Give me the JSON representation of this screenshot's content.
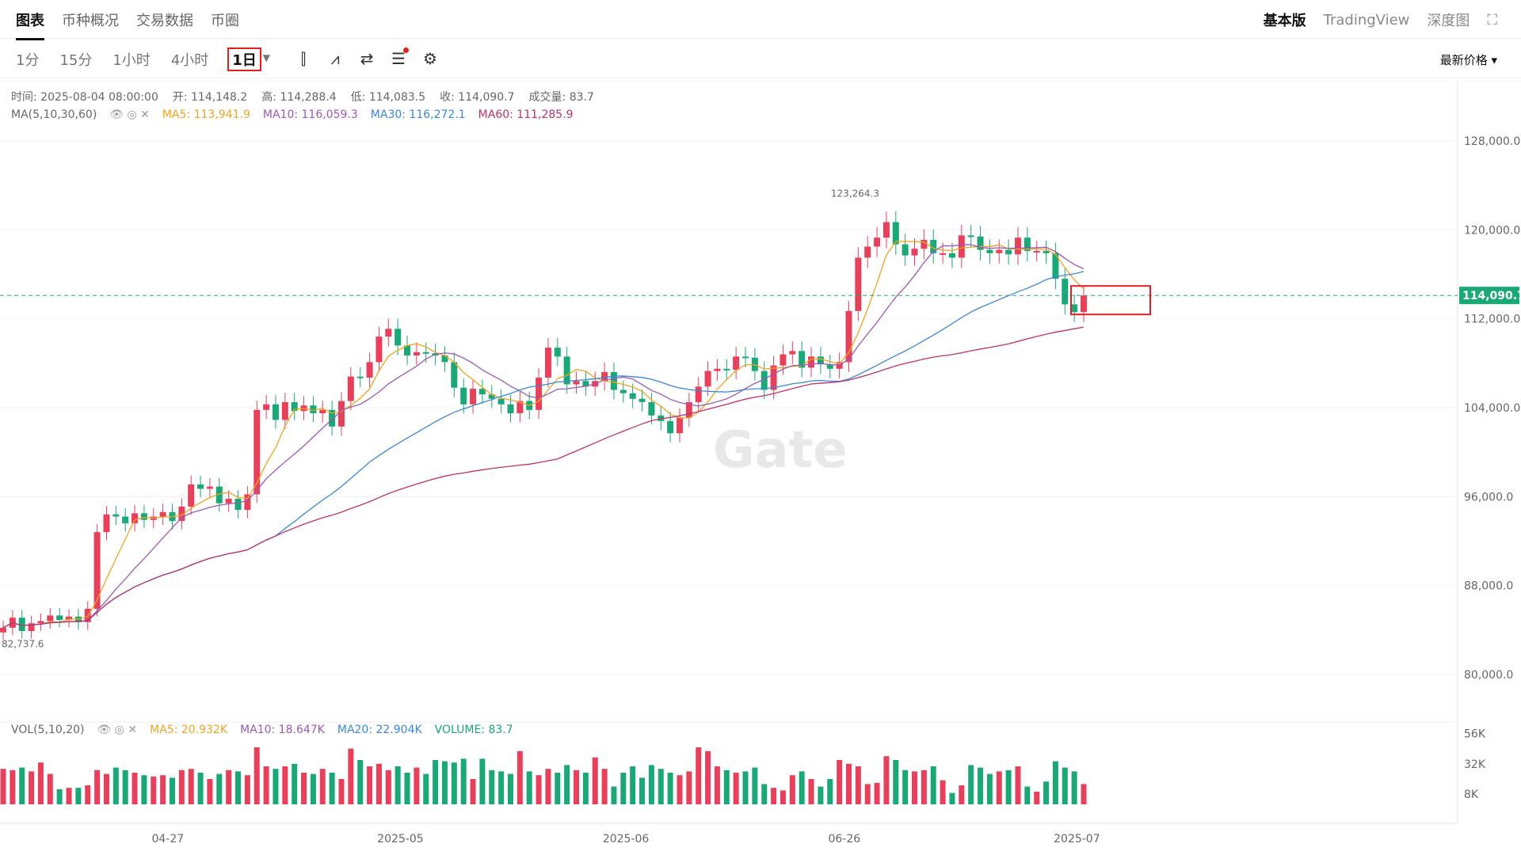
{
  "tabs": [
    "图表",
    "币种概况",
    "交易数据",
    "币圈"
  ],
  "top_right": {
    "basic": "基本版",
    "tradingview": "TradingView",
    "depth": "深度图"
  },
  "intervals": [
    "1分",
    "15分",
    "1小时",
    "4小时",
    "1日"
  ],
  "price_selector": "最新价格 ▾",
  "ohlc": {
    "time": "时间: 2025-08-04 08:00:00",
    "open": "开: 114,148.2",
    "high": "高: 114,288.4",
    "low": "低: 114,083.5",
    "close": "收: 114,090.7",
    "volume": "成交量: 83.7"
  },
  "ma_info": {
    "label": "MA(5,10,30,60)",
    "ma5": "MA5: 113,941.9",
    "ma10": "MA10: 116,059.3",
    "ma30": "MA30: 116,272.1",
    "ma60": "MA60: 111,285.9"
  },
  "vol_info": {
    "label": "VOL(5,10,20)",
    "ma5": "MA5: 20.932K",
    "ma10": "MA10: 18.647K",
    "ma20": "MA20: 22.904K",
    "volume": "VOLUME: 83.7"
  },
  "watermark": "Gate",
  "colors": {
    "up": "#e8405a",
    "down": "#1aa876",
    "ma5": "#f0a320",
    "ma10": "#9b59b6",
    "ma30": "#3a87d8",
    "ma60": "#c0306a",
    "price_line": "#1aa876"
  },
  "chart_data": {
    "type": "candlestick",
    "y_ticks": [
      "128,000.0",
      "120,000.0",
      "112,000.0",
      "104,000.0",
      "96,000.0",
      "88,000.0",
      "80,000.0"
    ],
    "x_ticks": [
      "04-27",
      "2025-05",
      "2025-06",
      "06-26",
      "2025-07"
    ],
    "vol_ticks": [
      "56K",
      "32K",
      "8K"
    ],
    "last_price": "114,090.7",
    "high_label": "123,264.3",
    "low_label": "82,737.6",
    "closes": [
      84200,
      85100,
      83900,
      84600,
      84800,
      85300,
      84900,
      85200,
      84700,
      85900,
      92800,
      94400,
      94200,
      93600,
      94500,
      93900,
      94200,
      94600,
      93800,
      95100,
      97100,
      96700,
      96900,
      95400,
      95800,
      94800,
      96200,
      103800,
      104300,
      102900,
      104500,
      103700,
      104200,
      103500,
      103800,
      102300,
      104600,
      106800,
      106700,
      108100,
      110400,
      111100,
      109600,
      108700,
      109000,
      108900,
      108700,
      108100,
      105800,
      104300,
      105700,
      105200,
      104800,
      104300,
      103500,
      104600,
      103800,
      106700,
      109400,
      108600,
      106100,
      106400,
      105900,
      106400,
      107200,
      105600,
      105300,
      104800,
      104500,
      103300,
      102800,
      101700,
      103100,
      104500,
      105900,
      107300,
      107500,
      107400,
      108600,
      108500,
      107300,
      105600,
      107800,
      108800,
      109100,
      107600,
      108600,
      107900,
      107500,
      108100,
      112700,
      117500,
      118500,
      119300,
      120700,
      118700,
      117700,
      118300,
      119100,
      117900,
      117900,
      117500,
      119500,
      119400,
      118200,
      117900,
      118200,
      117800,
      119300,
      118100,
      118100,
      117900,
      115600,
      113300,
      112600,
      114100
    ],
    "volumes": [
      28,
      27,
      29,
      26,
      33,
      24,
      12,
      13,
      13,
      15,
      27,
      24,
      29,
      27,
      25,
      23,
      22,
      23,
      21,
      27,
      28,
      25,
      20,
      24,
      27,
      26,
      23,
      45,
      30,
      28,
      30,
      32,
      25,
      24,
      28,
      25,
      20,
      44,
      35,
      30,
      32,
      27,
      30,
      25,
      29,
      24,
      35,
      34,
      33,
      36,
      20,
      36,
      27,
      26,
      24,
      42,
      26,
      23,
      28,
      25,
      31,
      27,
      25,
      37,
      28,
      14,
      25,
      30,
      21,
      31,
      28,
      25,
      23,
      26,
      45,
      42,
      30,
      27,
      25,
      26,
      29,
      16,
      13,
      11,
      23,
      26,
      20,
      14,
      20,
      35,
      32,
      30,
      16,
      17,
      38,
      35,
      27,
      26,
      27,
      30,
      19,
      9,
      15,
      31,
      29,
      24,
      26,
      27,
      30,
      14,
      10,
      18,
      34,
      29,
      26,
      16
    ]
  }
}
